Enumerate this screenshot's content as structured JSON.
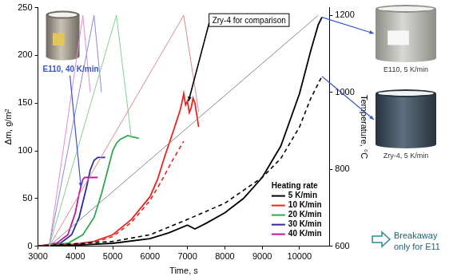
{
  "chart_data": {
    "type": "line",
    "x_label": "Time, s",
    "y_label": "Δm, g/m²",
    "y2_label": "Temperature, °C",
    "xlim": [
      3000,
      10800
    ],
    "xticks": [
      3000,
      4000,
      5000,
      6000,
      7000,
      8000,
      9000,
      10000
    ],
    "ylim": [
      0,
      250
    ],
    "yticks": [
      0,
      50,
      100,
      150,
      200,
      250
    ],
    "y2lim": [
      600,
      1220
    ],
    "y2ticks": [
      600,
      800,
      1000,
      1200
    ],
    "grid": false,
    "legend": "lower right",
    "legend_title": "Heating rate",
    "series": [
      {
        "name": "5 K/min",
        "color": "#000000",
        "x": [
          3000,
          4000,
          5000,
          6000,
          6500,
          7000,
          7200,
          7500,
          8000,
          8500,
          9000,
          9500,
          10000,
          10300,
          10500,
          10600
        ],
        "values": [
          0,
          1,
          3,
          8,
          14,
          22,
          18,
          24,
          35,
          50,
          72,
          105,
          160,
          205,
          232,
          240
        ]
      },
      {
        "name": "10 K/min",
        "color": "#e8261f",
        "x": [
          3000,
          4000,
          4500,
          5000,
          5500,
          6000,
          6200,
          6400,
          6600,
          6700,
          6800,
          6850,
          6900,
          6950,
          7000,
          7050,
          7100,
          7150,
          7200,
          7300
        ],
        "values": [
          0,
          2,
          5,
          12,
          28,
          52,
          70,
          95,
          118,
          130,
          142,
          150,
          160,
          148,
          152,
          140,
          145,
          155,
          150,
          125
        ]
      },
      {
        "name": "20 K/min",
        "color": "#2fa84f",
        "x": [
          3000,
          3800,
          4200,
          4500,
          4700,
          4900,
          5000,
          5100,
          5200,
          5400,
          5600,
          5700
        ],
        "values": [
          0,
          3,
          12,
          30,
          55,
          85,
          100,
          108,
          112,
          116,
          114,
          113
        ]
      },
      {
        "name": "30 K/min",
        "color": "#2a2aa0",
        "x": [
          3000,
          3600,
          3900,
          4100,
          4300,
          4400,
          4500,
          4600,
          4800
        ],
        "values": [
          0,
          3,
          12,
          30,
          62,
          80,
          90,
          93,
          93
        ]
      },
      {
        "name": "40 K/min",
        "color": "#c0179a",
        "x": [
          3000,
          3500,
          3800,
          4000,
          4100,
          4200,
          4250,
          4600
        ],
        "values": [
          0,
          3,
          12,
          35,
          55,
          70,
          72,
          72
        ]
      }
    ],
    "temperature_series": [
      {
        "color": "#8a8a8a",
        "axis": "y2",
        "x": [
          3300,
          10500
        ],
        "values": [
          600,
          1200
        ]
      },
      {
        "color": "#d98a8a",
        "axis": "y2",
        "x": [
          3300,
          6900,
          7300
        ],
        "values": [
          600,
          1200,
          950
        ]
      },
      {
        "color": "#86cf96",
        "axis": "y2",
        "x": [
          3300,
          5100,
          5500
        ],
        "values": [
          600,
          1200,
          880
        ]
      },
      {
        "color": "#8a8ad6",
        "axis": "y2",
        "x": [
          3300,
          4500,
          4700
        ],
        "values": [
          600,
          1200,
          1000
        ]
      },
      {
        "color": "#e08ad2",
        "axis": "y2",
        "x": [
          3300,
          4200,
          4400
        ],
        "values": [
          600,
          1200,
          1000
        ]
      }
    ],
    "comparison_series": [
      {
        "color": "#000000",
        "line_style": "dashed",
        "x": [
          3000,
          5000,
          6000,
          7000,
          8000,
          9000,
          9500,
          10000,
          10300,
          10600
        ],
        "values": [
          0,
          5,
          12,
          28,
          45,
          72,
          92,
          125,
          155,
          178
        ]
      },
      {
        "color": "#e8261f",
        "line_style": "dashed",
        "x": [
          3000,
          4500,
          5000,
          5500,
          6000,
          6300,
          6600,
          6900
        ],
        "values": [
          0,
          4,
          10,
          25,
          48,
          68,
          90,
          110
        ]
      }
    ],
    "annotations": {
      "comparison": "Zry-4 for comparison",
      "photo_left": "E110, 40 K/min",
      "photo_right_top": "E110, 5 K/min",
      "photo_right_bottom": "Zry-4, 5 K/min",
      "note": [
        "Breakaway",
        "only for E11"
      ]
    }
  }
}
